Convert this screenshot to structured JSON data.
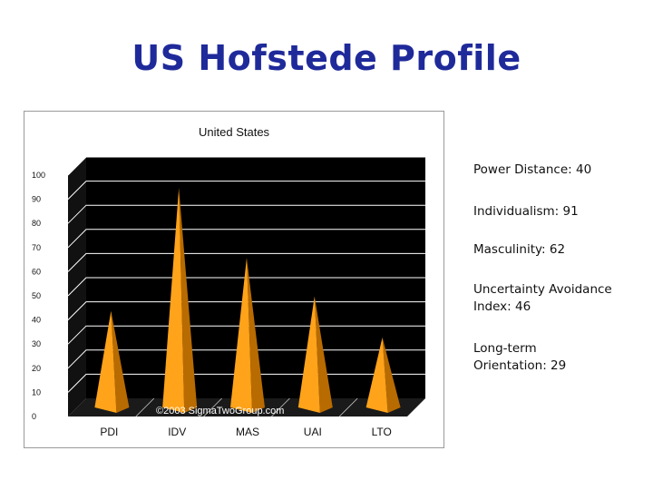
{
  "slide": {
    "title": "US Hofstede Profile"
  },
  "metrics": [
    {
      "text": "Power Distance: 40"
    },
    {
      "text": "Individualism: 91"
    },
    {
      "text": "Masculinity: 62"
    },
    {
      "text": "Uncertainty Avoidance Index: 46"
    },
    {
      "text": "Long-term Orientation: 29"
    }
  ],
  "chart_data": {
    "type": "bar",
    "title": "United States",
    "categories": [
      "PDI",
      "IDV",
      "MAS",
      "UAI",
      "LTO"
    ],
    "values": [
      40,
      91,
      62,
      46,
      29
    ],
    "ylim": [
      0,
      100
    ],
    "yticks": [
      0,
      10,
      20,
      30,
      40,
      50,
      60,
      70,
      80,
      90,
      100
    ],
    "grid": true,
    "annotation": "©2003 SigmaTwoGroup.com",
    "colors": {
      "bar": "#ffa31a",
      "bar_shade": "#b86b00",
      "plot_bg": "#000000",
      "grid": "#ffffff"
    }
  }
}
